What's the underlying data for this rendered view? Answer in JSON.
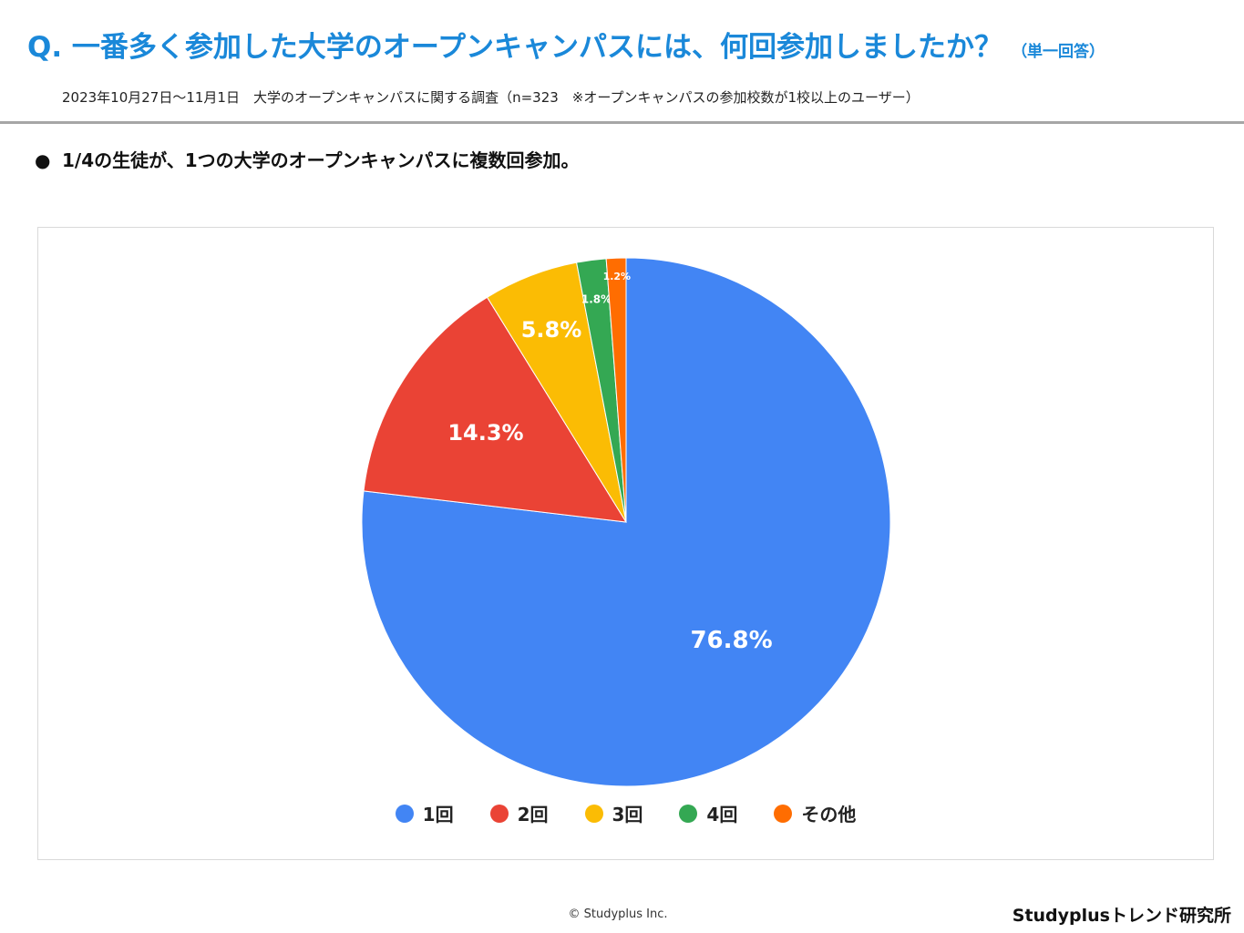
{
  "header": {
    "question": "Q. 一番多く参加した大学のオープンキャンパスには、何回参加しましたか？",
    "question_note": "（単一回答）",
    "survey_info": "2023年10月27日～11月1日　大学のオープンキャンパスに関する調査（n=323　※オープンキャンパスの参加校数が1校以上のユーザー）"
  },
  "summary": {
    "bullet": "●",
    "text": "1/4の生徒が、1つの大学のオープンキャンパスに複数回参加。"
  },
  "chart_data": {
    "type": "pie",
    "categories": [
      "1回",
      "2回",
      "3回",
      "4回",
      "その他"
    ],
    "values": [
      76.8,
      14.3,
      5.8,
      1.8,
      1.2
    ],
    "labels": [
      "76.8%",
      "14.3%",
      "5.8%",
      "1.8%",
      "1.2%"
    ],
    "colors": [
      "#4285f4",
      "#ea4335",
      "#fbbc04",
      "#34a853",
      "#ff6d01"
    ],
    "start": "12 o'clock",
    "direction": "clockwise",
    "legend_position": "bottom"
  },
  "footer": {
    "copyright": "© Studyplus Inc.",
    "brand": "Studyplusトレンド研究所"
  }
}
